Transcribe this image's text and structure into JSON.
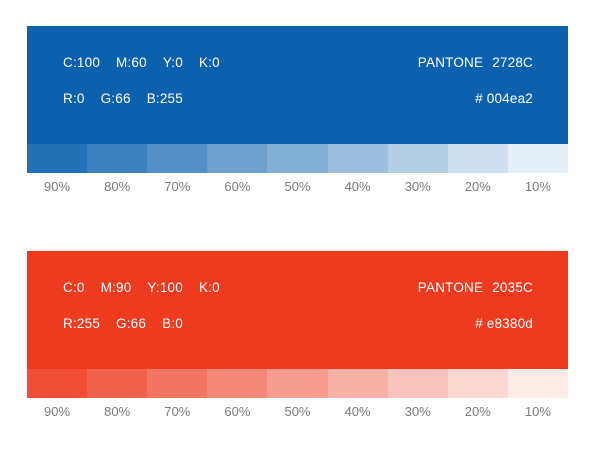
{
  "palette": [
    {
      "name": "blue",
      "base_color": "#0b61ae",
      "cmyk": {
        "c": "C:100",
        "m": "M:60",
        "y": "Y:0",
        "k": "K:0"
      },
      "rgb": {
        "r": "R:0",
        "g": "G:66",
        "b": "B:255"
      },
      "pantone_label": "PANTONE",
      "pantone_code": "2728C",
      "hex_label": "# 004ea2",
      "tints": [
        "90%",
        "80%",
        "70%",
        "60%",
        "50%",
        "40%",
        "30%",
        "20%",
        "10%"
      ]
    },
    {
      "name": "red",
      "base_color": "#ee3b20",
      "cmyk": {
        "c": "C:0",
        "m": "M:90",
        "y": "Y:100",
        "k": "K:0"
      },
      "rgb": {
        "r": "R:255",
        "g": "G:66",
        "b": "B:0"
      },
      "pantone_label": "PANTONE",
      "pantone_code": "2035C",
      "hex_label": "# e8380d",
      "tints": [
        "90%",
        "80%",
        "70%",
        "60%",
        "50%",
        "40%",
        "30%",
        "20%",
        "10%"
      ]
    }
  ]
}
